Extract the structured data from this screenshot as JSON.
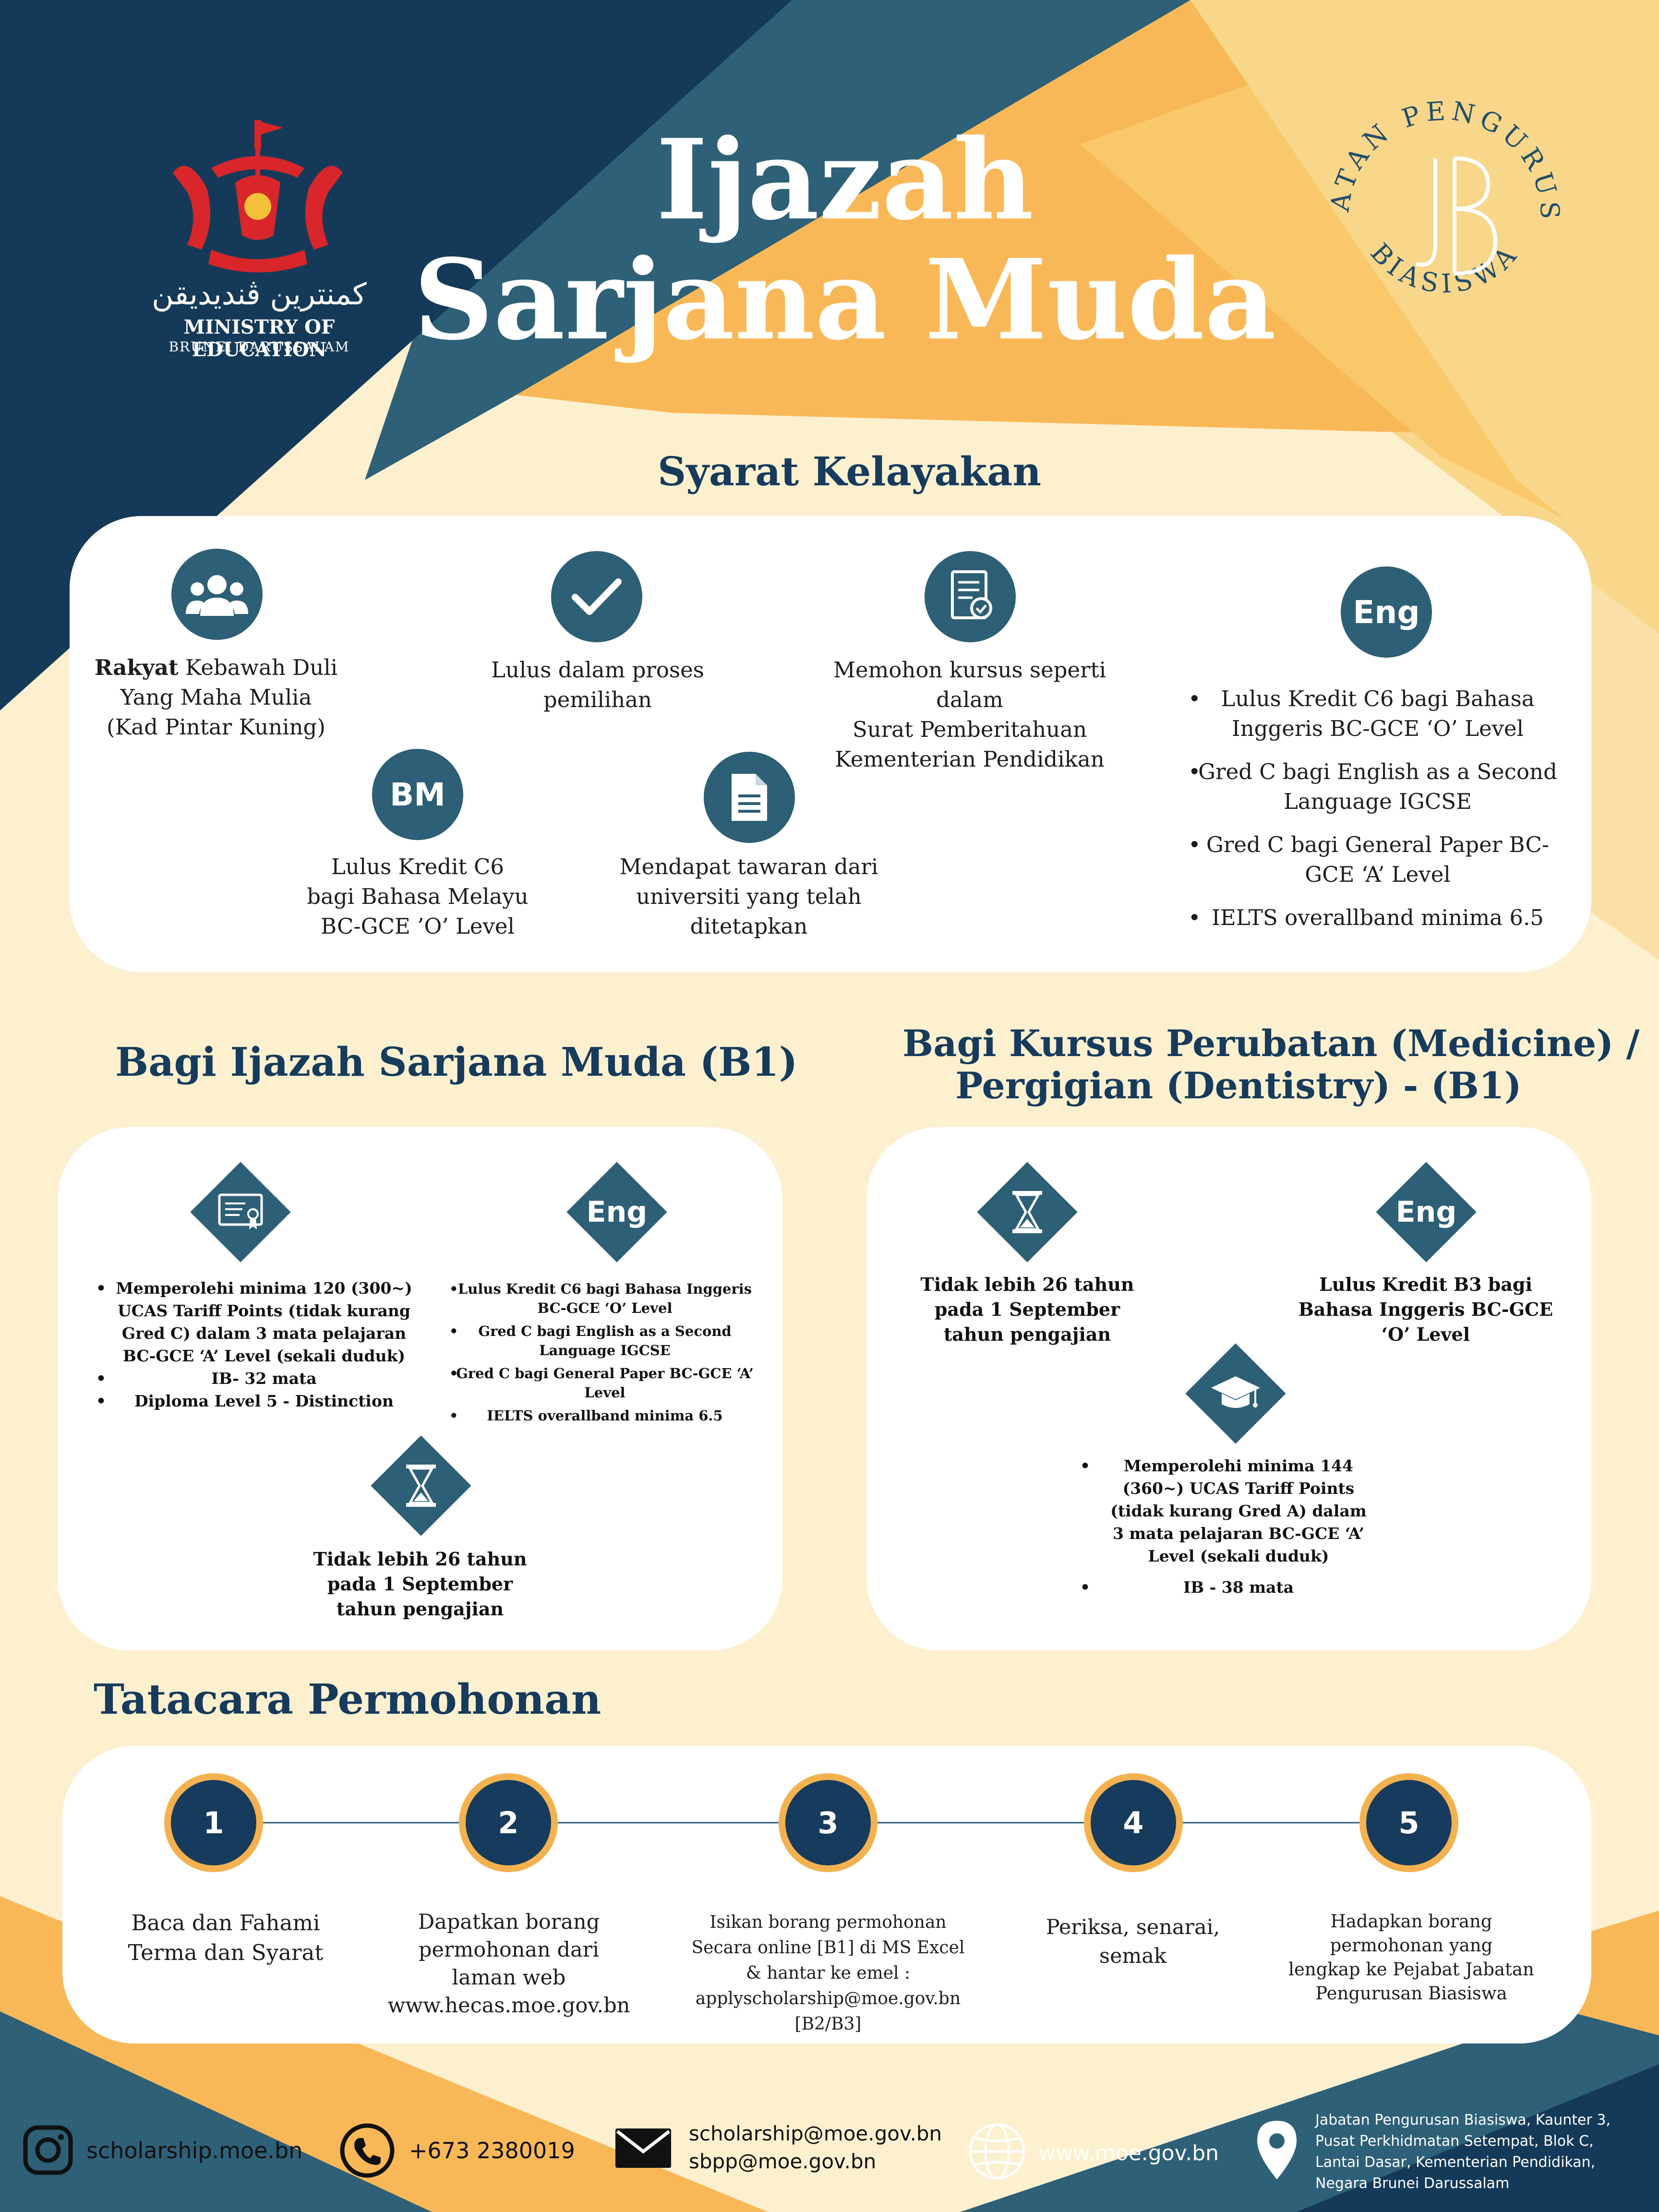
{
  "header": {
    "title_line1": "Ijazah",
    "title_line2": "Sarjana Muda",
    "moe_logo": {
      "jawi": "كمنترين ڤنديديقن",
      "name": "MINISTRY OF EDUCATION",
      "country": "BRUNEI DARUSSALAM"
    },
    "jpb_logo": {
      "ring_text": "JABATAN PENGURUSAN BIASISWA",
      "monogram": "JPB"
    }
  },
  "eligibility": {
    "heading": "Syarat Kelayakan",
    "items": [
      {
        "icon": "people-icon",
        "bold": "Rakyat",
        "text_line1": " Kebawah Duli",
        "text_rest": [
          "Yang Maha Mulia",
          "(Kad Pintar Kuning)"
        ]
      },
      {
        "icon": "check-icon",
        "text": [
          "Lulus dalam proses",
          "pemilihan"
        ]
      },
      {
        "icon": "document-check-icon",
        "text": [
          "Memohon kursus seperti dalam",
          "Surat Pemberitahuan",
          "Kementerian Pendidikan"
        ]
      },
      {
        "icon_text": "BM",
        "text": [
          "Lulus Kredit C6",
          "bagi Bahasa Melayu",
          "BC-GCE ’O’ Level"
        ]
      },
      {
        "icon": "file-icon",
        "text": [
          "Mendapat tawaran dari",
          "universiti yang telah",
          "ditetapkan"
        ]
      }
    ],
    "english": {
      "icon_text": "Eng",
      "bullets": [
        [
          "Lulus Kredit C6 bagi Bahasa",
          "Inggeris BC-GCE ‘O’ Level"
        ],
        [
          "Gred C bagi English as a Second",
          "Language IGCSE"
        ],
        [
          "Gred C bagi General Paper BC-",
          "GCE ‘A’ Level"
        ],
        [
          "IELTS overallband minima 6.5"
        ]
      ]
    }
  },
  "b1": {
    "heading": "Bagi Ijazah Sarjana Muda (B1)",
    "left_bullets": [
      [
        "Memperolehi minima 120 (300~)",
        "UCAS Tariff Points (tidak kurang",
        "Gred C) dalam 3 mata pelajaran",
        "BC-GCE  ‘A’ Level (sekali duduk)"
      ],
      [
        "IB- 32 mata"
      ],
      [
        "Diploma Level 5 - Distinction"
      ]
    ],
    "eng_icon_text": "Eng",
    "eng_bullets": [
      [
        "Lulus Kredit C6 bagi Bahasa Inggeris",
        "BC-GCE ‘O’ Level"
      ],
      [
        "Gred C bagi English as a Second",
        "Language IGCSE"
      ],
      [
        "Gred C bagi General Paper BC-GCE ‘A’",
        "Level"
      ],
      [
        "IELTS overallband minima 6.5"
      ]
    ],
    "age": [
      "Tidak lebih 26 tahun",
      "pada 1 September",
      "tahun pengajian"
    ]
  },
  "medicine": {
    "heading_line1": "Bagi Kursus Perubatan (Medicine) /",
    "heading_line2": "Pergigian (Dentistry) - (B1)",
    "age": [
      "Tidak lebih 26 tahun",
      "pada 1 September",
      "tahun pengajian"
    ],
    "eng_icon_text": "Eng",
    "eng": [
      "Lulus Kredit B3 bagi",
      "Bahasa Inggeris BC-GCE",
      "‘O’ Level"
    ],
    "bullets": [
      [
        "Memperolehi minima 144",
        "(360~) UCAS Tariff Points",
        "(tidak kurang Gred A) dalam",
        "3 mata pelajaran BC-GCE ‘A’",
        "Level (sekali duduk)"
      ],
      [
        "IB - 38 mata"
      ]
    ]
  },
  "procedure": {
    "heading": "Tatacara Permohonan",
    "steps": [
      {
        "num": "1",
        "text": [
          "Baca dan Fahami",
          "Terma dan Syarat"
        ]
      },
      {
        "num": "2",
        "text": [
          "Dapatkan borang",
          "permohonan dari",
          "laman web",
          "www.hecas.moe.gov.bn"
        ]
      },
      {
        "num": "3",
        "text": [
          "Isikan borang permohonan",
          "Secara online [B1] di MS Excel",
          "& hantar ke emel :",
          "applyscholarship@moe.gov.bn",
          "[B2/B3]"
        ]
      },
      {
        "num": "4",
        "text": [
          "Periksa, senarai,",
          "semak"
        ]
      },
      {
        "num": "5",
        "text": [
          "Hadapkan borang",
          "permohonan yang",
          "lengkap ke Pejabat Jabatan",
          "Pengurusan Biasiswa"
        ]
      }
    ]
  },
  "footer": {
    "instagram": "scholarship.moe.bn",
    "phone": "+673 2380019",
    "email1": "scholarship@moe.gov.bn",
    "email2": "sbpp@moe.gov.bn",
    "website": "www.moe.gov.bn",
    "address": [
      "Jabatan Pengurusan Biasiswa, Kaunter 3,",
      "Pusat Perkhidmatan Setempat, Blok C,",
      "Lantai Dasar, Kementerian Pendidikan,",
      "Negara Brunei Darussalam"
    ]
  },
  "colors": {
    "navy": "#163b5c",
    "teal": "#2d5f76",
    "gold": "#f3b24f",
    "cream": "#fdf0cf",
    "light_gold": "#f8d68a"
  }
}
